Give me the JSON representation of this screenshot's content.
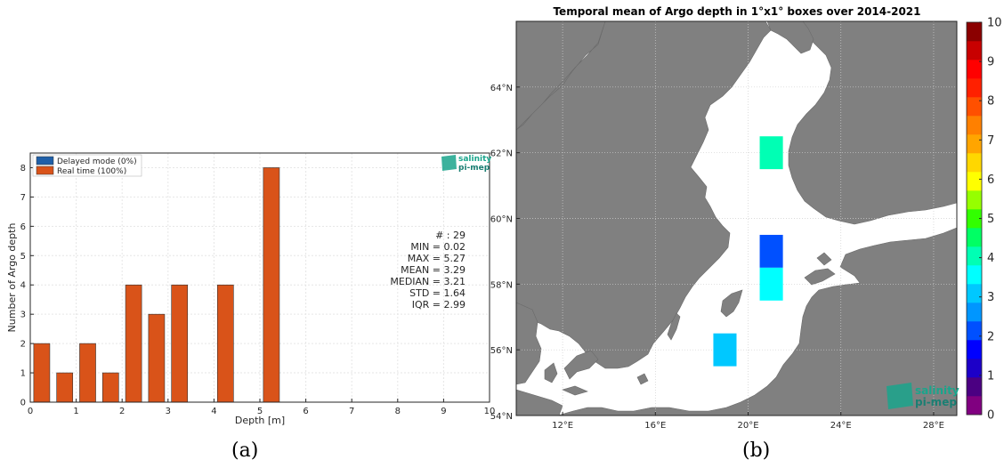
{
  "captions": {
    "a": "(a)",
    "b": "(b)"
  },
  "chart_data": [
    {
      "type": "bar",
      "xlabel": "Depth [m]",
      "ylabel": "Number of Argo depth",
      "xlim": [
        0,
        10
      ],
      "ylim": [
        0,
        8.5
      ],
      "x_ticks": [
        0,
        1,
        2,
        3,
        4,
        5,
        6,
        7,
        8,
        9,
        10
      ],
      "y_ticks": [
        0,
        1,
        2,
        3,
        4,
        5,
        6,
        7,
        8
      ],
      "grid": true,
      "bin_width": 0.35,
      "legend": {
        "placement": "top-left",
        "entries": [
          {
            "label": "Delayed mode (0%)",
            "color": "#1f5fa8"
          },
          {
            "label": "Real time (100%)",
            "color": "#d95319"
          }
        ]
      },
      "series": [
        {
          "name": "Real time (100%)",
          "color": "#d95319",
          "x": [
            0.25,
            0.75,
            1.25,
            1.75,
            2.25,
            2.75,
            3.25,
            4.25,
            5.25
          ],
          "values": [
            2,
            1,
            2,
            1,
            4,
            3,
            4,
            4,
            8
          ]
        },
        {
          "name": "Delayed mode (0%)",
          "color": "#1f5fa8",
          "x": [],
          "values": []
        }
      ],
      "stats": [
        "# : 29",
        "MIN = 0.02",
        "MAX =  5.27",
        "MEAN = 3.29",
        "MEDIAN = 3.21",
        "STD = 1.64",
        "IQR = 2.99"
      ],
      "logo": {
        "line1": "salinity",
        "line2": "pi-mep",
        "color": "#1aa58c"
      }
    },
    {
      "type": "heatmap",
      "title": "Temporal mean of Argo depth in 1°x1° boxes over 2014-2021",
      "lon_range": [
        10,
        29
      ],
      "lat_range": [
        54,
        66
      ],
      "x_ticks": [
        12,
        16,
        20,
        24,
        28
      ],
      "y_ticks": [
        54,
        56,
        58,
        60,
        62,
        64
      ],
      "x_tick_labels": [
        "12°E",
        "16°E",
        "20°E",
        "24°E",
        "28°E"
      ],
      "y_tick_labels": [
        "54°N",
        "56°N",
        "58°N",
        "60°N",
        "62°N",
        "64°N"
      ],
      "land_color": "#808080",
      "sea_color": "#ffffff",
      "colorbar": {
        "min": 0,
        "max": 10,
        "ticks": [
          0,
          1,
          2,
          3,
          4,
          5,
          6,
          7,
          8,
          9,
          10
        ],
        "colors": [
          "#800080",
          "#4b0082",
          "#1c00c8",
          "#0000ff",
          "#0050ff",
          "#0096ff",
          "#00c8ff",
          "#00ffff",
          "#00ffb4",
          "#00ff64",
          "#32ff00",
          "#96ff00",
          "#ffff00",
          "#ffd700",
          "#ffa500",
          "#ff8000",
          "#ff5000",
          "#ff2000",
          "#ff0000",
          "#c80000",
          "#8b0000"
        ]
      },
      "cells": [
        {
          "lon": 21,
          "lat": 62,
          "value": 4.0
        },
        {
          "lon": 21,
          "lat": 59,
          "value": 2.0
        },
        {
          "lon": 21,
          "lat": 58,
          "value": 3.5
        },
        {
          "lon": 19,
          "lat": 56,
          "value": 3.0
        }
      ],
      "logo": {
        "line1": "salinity",
        "line2": "pi-mep",
        "color": "#1aa58c"
      }
    }
  ]
}
